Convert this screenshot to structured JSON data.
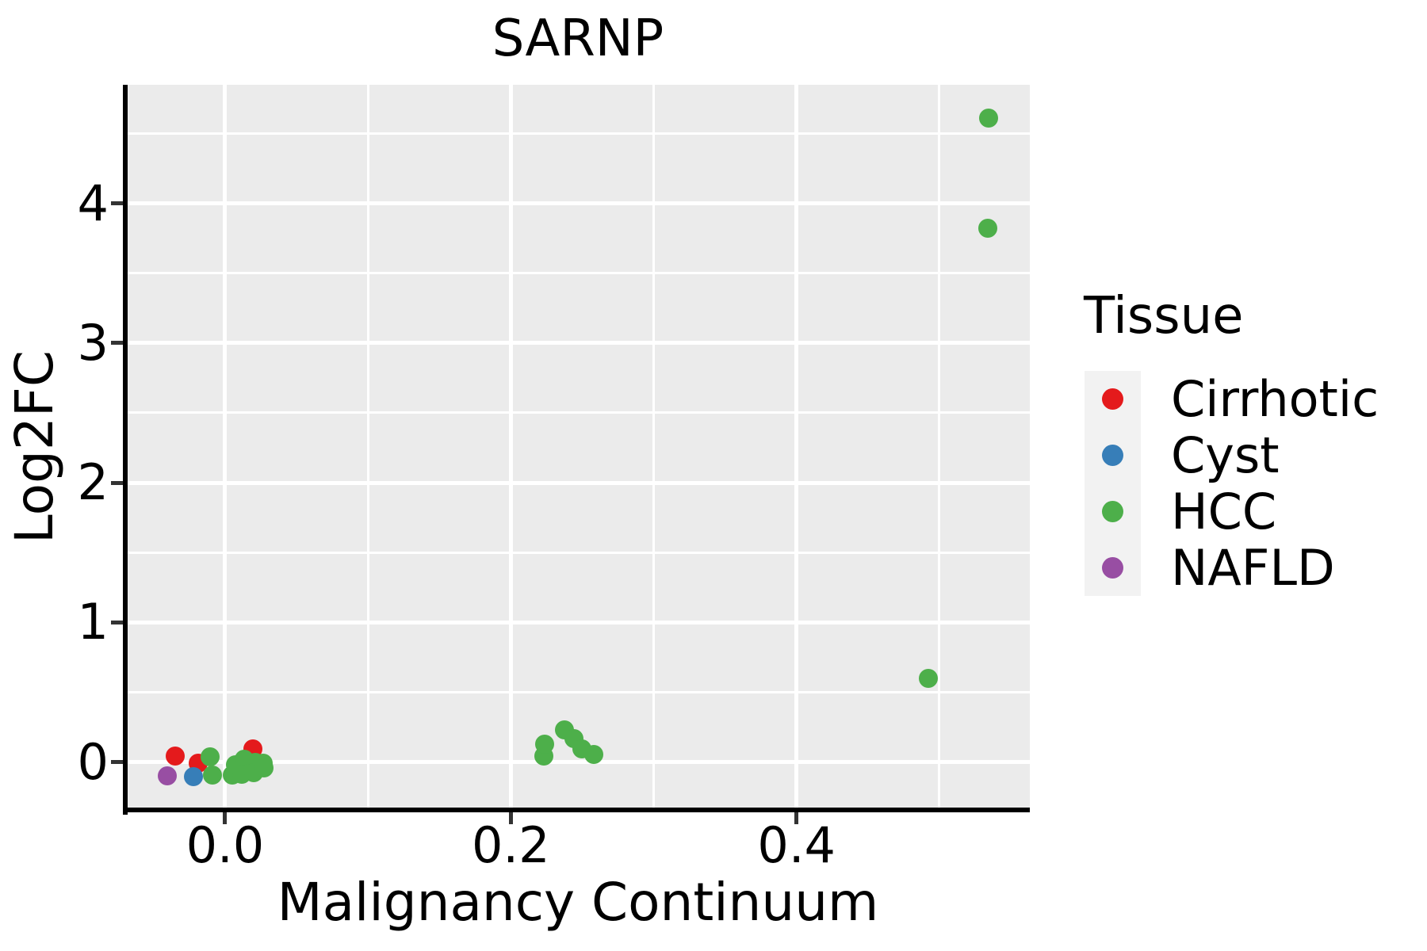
{
  "figure": {
    "background": "#ffffff"
  },
  "chart_data": {
    "type": "scatter",
    "title": "SARNP",
    "xlabel": "Malignancy Continuum",
    "ylabel": "Log2FC",
    "xlim": [
      -0.0693,
      0.5633
    ],
    "ylim": [
      -0.343,
      4.849
    ],
    "x_ticks": {
      "values": [
        0.0,
        0.2,
        0.4
      ],
      "labels": [
        "0.0",
        "0.2",
        "0.4"
      ]
    },
    "y_ticks": {
      "values": [
        0,
        1,
        2,
        3,
        4
      ],
      "labels": [
        "0",
        "1",
        "2",
        "3",
        "4"
      ]
    },
    "x_minor_ticks": [
      0.1,
      0.3,
      0.5
    ],
    "y_minor_ticks": [
      0.5,
      1.5,
      2.5,
      3.5,
      4.5
    ],
    "grid": true,
    "legend_position": "right",
    "colors": {
      "panel_bg": "#EBEBEB",
      "grid": "#FFFFFF",
      "axis_line": "#000000",
      "tick": "#333333",
      "legend_key_bg": "#F2F2F2"
    },
    "series": [
      {
        "name": "Cirrhotic",
        "color": "#E41A1C",
        "points": [
          [
            -0.035,
            0.044
          ],
          [
            -0.0186,
            -0.0085
          ],
          [
            0.0197,
            0.0955
          ]
        ]
      },
      {
        "name": "Cyst",
        "color": "#377EB8",
        "points": [
          [
            -0.0223,
            -0.102
          ]
        ]
      },
      {
        "name": "HCC",
        "color": "#4DAF4A",
        "points": [
          [
            -0.0105,
            0.037
          ],
          [
            -0.0089,
            -0.091
          ],
          [
            0.005,
            -0.091
          ],
          [
            0.0072,
            -0.017
          ],
          [
            0.0133,
            0.02
          ],
          [
            0.0117,
            -0.085
          ],
          [
            0.0211,
            -0.003
          ],
          [
            0.02,
            -0.074
          ],
          [
            0.0266,
            -0.006
          ],
          [
            0.0272,
            -0.045
          ],
          [
            0.2231,
            0.0454
          ],
          [
            0.2236,
            0.1276
          ],
          [
            0.2373,
            0.2286
          ],
          [
            0.2442,
            0.1662
          ],
          [
            0.2497,
            0.0964
          ],
          [
            0.2582,
            0.0527
          ],
          [
            0.4921,
            0.6013
          ],
          [
            0.5342,
            4.611
          ],
          [
            0.5338,
            3.821
          ]
        ]
      },
      {
        "name": "NAFLD",
        "color": "#984EA3",
        "points": [
          [
            -0.0406,
            -0.0998
          ]
        ]
      }
    ]
  },
  "legend": {
    "title": "Tissue",
    "entries": [
      {
        "label": "Cirrhotic",
        "color": "#E41A1C"
      },
      {
        "label": "Cyst",
        "color": "#377EB8"
      },
      {
        "label": "HCC",
        "color": "#4DAF4A"
      },
      {
        "label": "NAFLD",
        "color": "#984EA3"
      }
    ]
  }
}
